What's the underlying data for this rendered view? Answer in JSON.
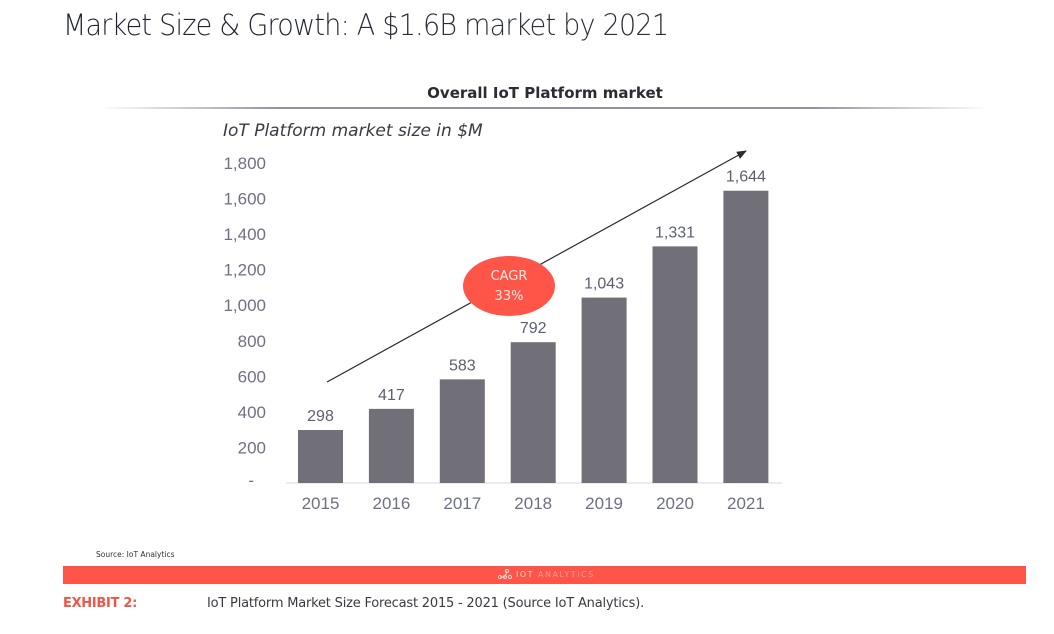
{
  "page": {
    "title_bold": "Market Size & Growth:",
    "title_light": " A $1.6B market by 2021",
    "source": "Source: IoT Analytics",
    "logo_text": "IOT",
    "logo_text_faint": " ANALYTICS",
    "exhibit_label": "EXHIBIT 2:",
    "caption": "IoT Platform Market Size Forecast 2015 - 2021 (Source IoT Analytics).",
    "colors": {
      "bar": "#717079",
      "accent_red": "#ff5548",
      "axis_text": "#6e7088",
      "label_text": "#5c5e74"
    }
  },
  "chart_data": {
    "type": "bar",
    "title": "Overall IoT Platform market",
    "ylabel": "IoT Platform market size in $M",
    "xlabel": "",
    "categories": [
      "2015",
      "2016",
      "2017",
      "2018",
      "2019",
      "2020",
      "2021"
    ],
    "values": [
      298,
      417,
      583,
      792,
      1043,
      1331,
      1644
    ],
    "value_labels": [
      "298",
      "417",
      "583",
      "792",
      "1,043",
      "1,331",
      "1,644"
    ],
    "ylim": [
      0,
      1800
    ],
    "yticks": [
      0,
      200,
      400,
      600,
      800,
      1000,
      1200,
      1400,
      1600,
      1800
    ],
    "ytick_labels": [
      "-",
      "200",
      "400",
      "600",
      "800",
      "1,000",
      "1,200",
      "1,400",
      "1,600",
      "1,800"
    ],
    "grid": false,
    "legend": "none",
    "annotations": [
      {
        "type": "trend-arrow",
        "from": "2015",
        "to": "2021",
        "text": ""
      },
      {
        "type": "badge",
        "text_line1": "CAGR",
        "text_line2": "33%"
      }
    ]
  }
}
